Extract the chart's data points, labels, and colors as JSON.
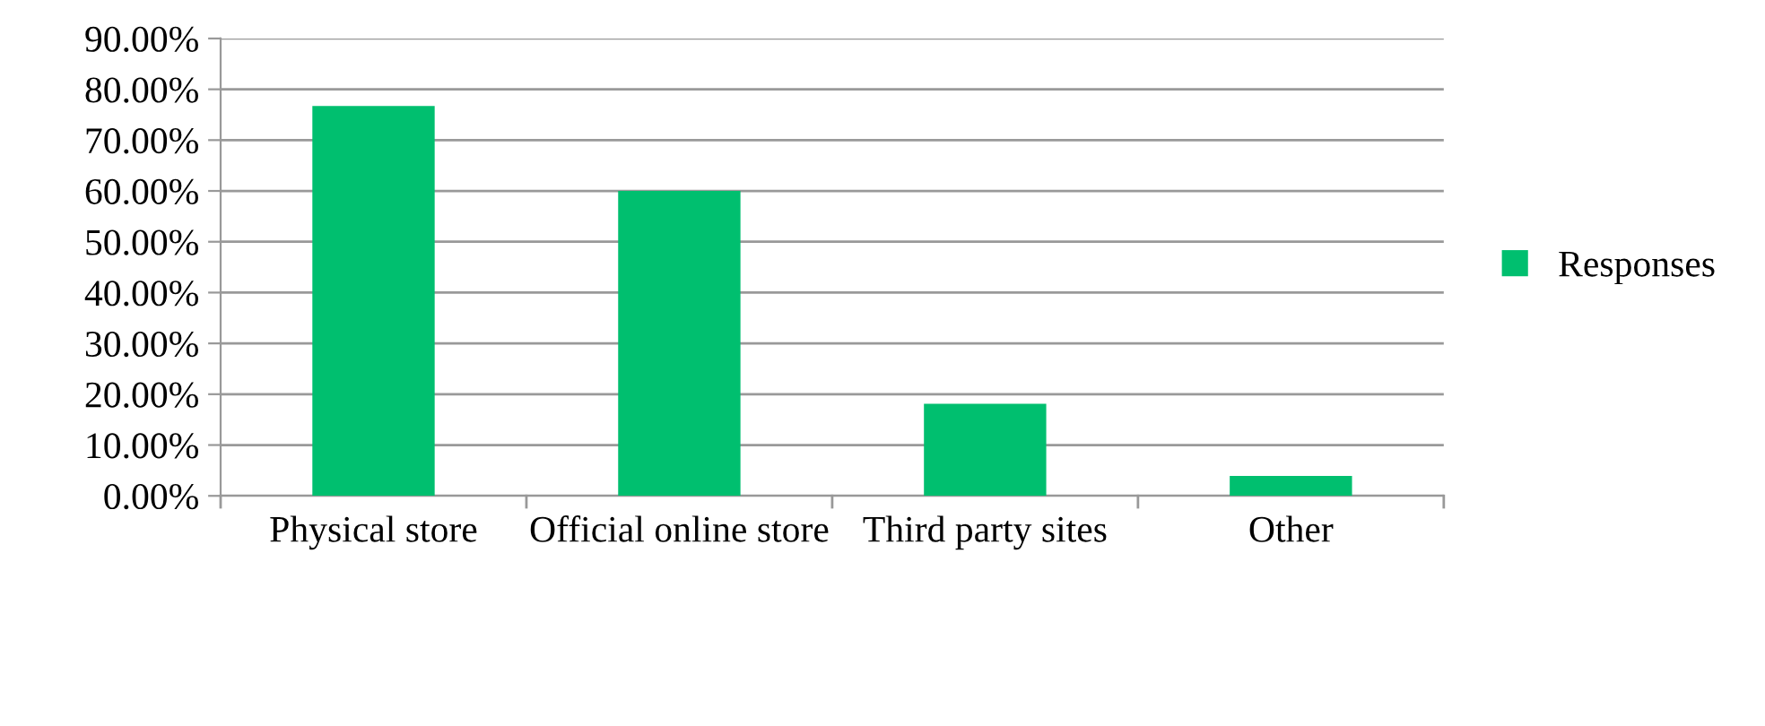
{
  "chart_data": {
    "type": "bar",
    "categories": [
      "Physical store",
      "Official online store",
      "Third party sites",
      "Other"
    ],
    "series": [
      {
        "name": "Responses",
        "color": "#00bf6f",
        "values": [
          76.7,
          60.0,
          18.1,
          3.9
        ]
      }
    ],
    "ylim": [
      0,
      90
    ],
    "yticks": [
      {
        "value": 0,
        "label": "0.00%"
      },
      {
        "value": 10,
        "label": "10.00%"
      },
      {
        "value": 20,
        "label": "20.00%"
      },
      {
        "value": 30,
        "label": "30.00%"
      },
      {
        "value": 40,
        "label": "40.00%"
      },
      {
        "value": 50,
        "label": "50.00%"
      },
      {
        "value": 60,
        "label": "60.00%"
      },
      {
        "value": 70,
        "label": "70.00%"
      },
      {
        "value": 80,
        "label": "80.00%"
      },
      {
        "value": 90,
        "label": "90.00%"
      }
    ],
    "grid": "y",
    "legend": "right"
  }
}
